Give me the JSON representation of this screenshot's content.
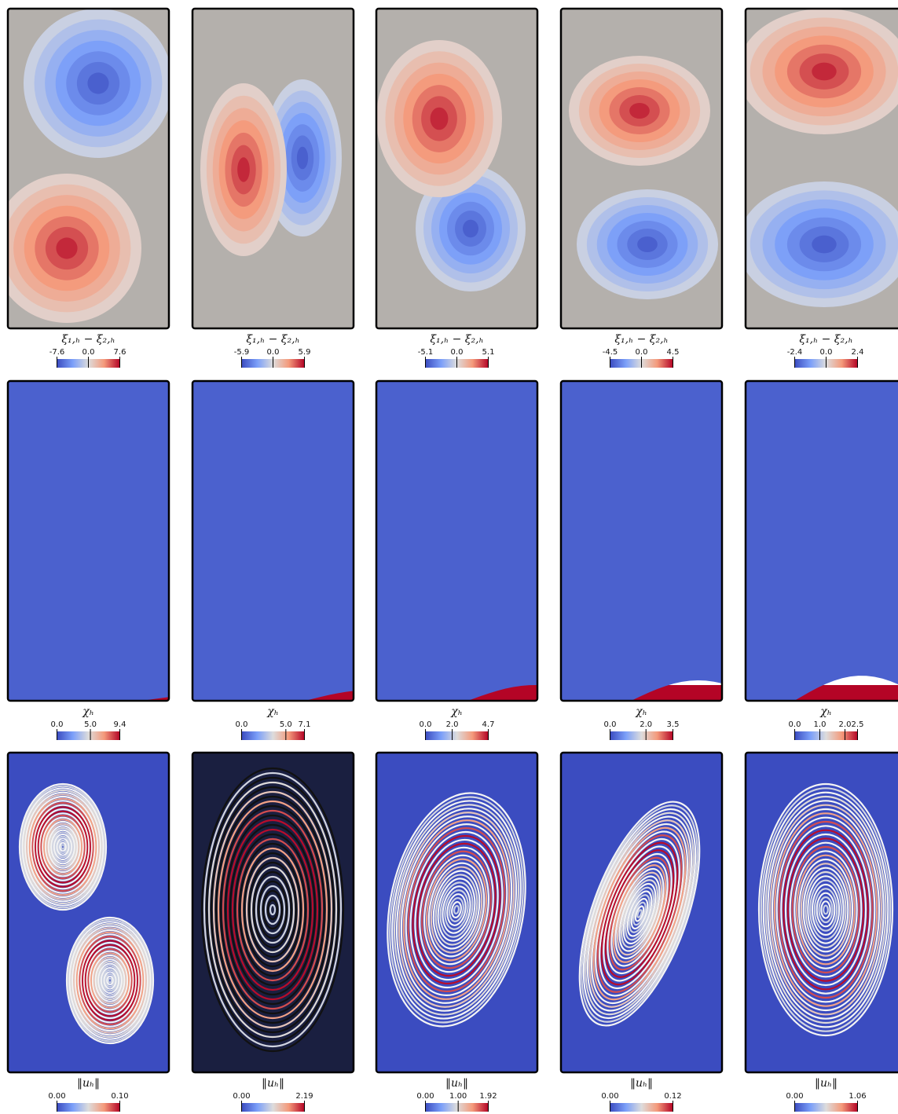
{
  "rows": [
    {
      "panels": [
        {
          "label": "ξ₁,ₕ − ξ₂,ₕ",
          "clim": [
            -7.6,
            7.6
          ],
          "ticks": [
            -7.6,
            {
              "value": 0,
              "label": "0.0"
            },
            7.6
          ]
        },
        {
          "label": "ξ₁,ₕ − ξ₂,ₕ",
          "clim": [
            -5.9,
            5.9
          ],
          "ticks": [
            -5.9,
            {
              "value": 0,
              "label": "0.0"
            },
            5.9
          ]
        },
        {
          "label": "ξ₁,ₕ − ξ₂,ₕ",
          "clim": [
            -5.1,
            5.1
          ],
          "ticks": [
            -5.1,
            {
              "value": 0,
              "label": "0.0"
            },
            5.1
          ]
        },
        {
          "label": "ξ₁,ₕ − ξ₂,ₕ",
          "clim": [
            -4.5,
            4.5
          ],
          "ticks": [
            -4.5,
            {
              "value": 0,
              "label": "0.0"
            },
            4.5
          ]
        },
        {
          "label": "ξ₁,ₕ − ξ₂,ₕ",
          "clim": [
            -2.4,
            2.4
          ],
          "ticks": [
            -2.4,
            {
              "value": 0,
              "label": "0.0"
            },
            2.4
          ]
        }
      ]
    },
    {
      "panels": [
        {
          "label": "χₕ",
          "clim": [
            0,
            9.4
          ],
          "ticks": [
            {
              "value": 0,
              "label": "0.0"
            },
            {
              "value": 5,
              "label": "5.0"
            },
            9.4
          ]
        },
        {
          "label": "χₕ",
          "clim": [
            0,
            7.1
          ],
          "ticks": [
            {
              "value": 0,
              "label": "0.0"
            },
            {
              "value": 5,
              "label": "5.0"
            },
            7.1
          ]
        },
        {
          "label": "χₕ",
          "clim": [
            0,
            4.7
          ],
          "ticks": [
            {
              "value": 0,
              "label": "0.0"
            },
            {
              "value": 2,
              "label": "2.0"
            },
            4.7
          ]
        },
        {
          "label": "χₕ",
          "clim": [
            0,
            3.5
          ],
          "ticks": [
            {
              "value": 0,
              "label": "0.0"
            },
            {
              "value": 2,
              "label": "2.0"
            },
            3.5
          ]
        },
        {
          "label": "χₕ",
          "clim": [
            0,
            2.5
          ],
          "ticks": [
            {
              "value": 0,
              "label": "0.0"
            },
            {
              "value": 1,
              "label": "1.0"
            },
            {
              "value": 2,
              "label": "2.0"
            },
            2.5
          ]
        }
      ]
    },
    {
      "panels": [
        {
          "label": "‖uₕ‖",
          "clim": [
            0,
            0.1
          ],
          "ticks": [
            {
              "value": 0,
              "label": "0.00"
            },
            {
              "value": 0.1,
              "label": "0.10"
            }
          ]
        },
        {
          "label": "‖uₕ‖",
          "clim": [
            0,
            2.19
          ],
          "ticks": [
            {
              "value": 0,
              "label": "0.00"
            },
            2.19
          ]
        },
        {
          "label": "‖uₕ‖",
          "clim": [
            0,
            1.92
          ],
          "ticks": [
            {
              "value": 0,
              "label": "0.00"
            },
            {
              "value": 1,
              "label": "1.00"
            },
            1.92
          ]
        },
        {
          "label": "‖uₕ‖",
          "clim": [
            0,
            0.12
          ],
          "ticks": [
            {
              "value": 0,
              "label": "0.00"
            },
            0.12
          ]
        },
        {
          "label": "‖uₕ‖",
          "clim": [
            0,
            1.06
          ],
          "ticks": [
            {
              "value": 0,
              "label": "0.00"
            },
            1.06
          ]
        }
      ]
    }
  ]
}
